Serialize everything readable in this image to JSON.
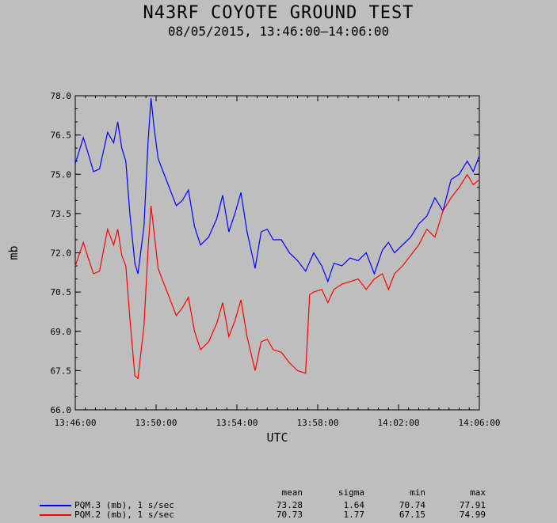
{
  "header": {
    "title": "N43RF COYOTE GROUND TEST",
    "subtitle": "08/05/2015, 13:46:00–14:06:00"
  },
  "chart_data": {
    "type": "line",
    "xlabel": "UTC",
    "ylabel": "mb",
    "xlim": [
      0,
      20
    ],
    "ylim": [
      66.0,
      78.0
    ],
    "grid": false,
    "x_ticks": [
      {
        "value": 0,
        "label": "13:46:00"
      },
      {
        "value": 4,
        "label": "13:50:00"
      },
      {
        "value": 8,
        "label": "13:54:00"
      },
      {
        "value": 12,
        "label": "13:58:00"
      },
      {
        "value": 16,
        "label": "14:02:00"
      },
      {
        "value": 20,
        "label": "14:06:00"
      }
    ],
    "y_ticks": [
      "66.0",
      "67.5",
      "69.0",
      "70.5",
      "72.0",
      "73.5",
      "75.0",
      "76.5",
      "78.0"
    ],
    "series": [
      {
        "name": "PQM.3 (mb), 1 s/sec",
        "color": "#0000ff",
        "x": [
          0,
          0.4,
          0.6,
          0.9,
          1.2,
          1.6,
          1.9,
          2.1,
          2.3,
          2.5,
          2.7,
          2.95,
          3.1,
          3.4,
          3.6,
          3.75,
          3.9,
          4.1,
          4.3,
          4.6,
          5.0,
          5.3,
          5.6,
          5.9,
          6.2,
          6.6,
          7.0,
          7.3,
          7.6,
          7.9,
          8.2,
          8.5,
          8.9,
          9.2,
          9.5,
          9.8,
          10.2,
          10.6,
          11.0,
          11.4,
          11.8,
          12.2,
          12.5,
          12.8,
          13.2,
          13.6,
          14.0,
          14.4,
          14.8,
          15.2,
          15.5,
          15.8,
          16.2,
          16.6,
          17.0,
          17.4,
          17.8,
          18.2,
          18.6,
          19.0,
          19.4,
          19.7,
          20.0
        ],
        "y": [
          75.4,
          76.4,
          75.9,
          75.1,
          75.2,
          76.6,
          76.2,
          77.0,
          76.0,
          75.5,
          73.5,
          71.6,
          71.2,
          73.0,
          76.2,
          77.91,
          76.8,
          75.6,
          75.2,
          74.6,
          73.8,
          74.0,
          74.4,
          73.0,
          72.3,
          72.6,
          73.3,
          74.2,
          72.8,
          73.5,
          74.3,
          72.8,
          71.4,
          72.8,
          72.9,
          72.5,
          72.5,
          72.0,
          71.7,
          71.3,
          72.0,
          71.5,
          70.9,
          71.6,
          71.5,
          71.8,
          71.7,
          72.0,
          71.2,
          72.1,
          72.4,
          72.0,
          72.3,
          72.6,
          73.1,
          73.4,
          74.1,
          73.6,
          74.8,
          75.0,
          75.5,
          75.1,
          75.7
        ]
      },
      {
        "name": "PQM.2 (mb), 1 s/sec",
        "color": "#ff0000",
        "x": [
          0,
          0.4,
          0.6,
          0.9,
          1.2,
          1.6,
          1.9,
          2.1,
          2.3,
          2.5,
          2.7,
          2.95,
          3.1,
          3.4,
          3.6,
          3.75,
          3.9,
          4.1,
          4.3,
          4.6,
          5.0,
          5.3,
          5.6,
          5.9,
          6.2,
          6.6,
          7.0,
          7.3,
          7.6,
          7.9,
          8.2,
          8.5,
          8.9,
          9.2,
          9.5,
          9.8,
          10.2,
          10.6,
          11.0,
          11.4,
          11.6,
          11.8,
          12.2,
          12.5,
          12.8,
          13.2,
          13.6,
          14.0,
          14.4,
          14.8,
          15.2,
          15.5,
          15.8,
          16.2,
          16.6,
          17.0,
          17.4,
          17.8,
          18.2,
          18.6,
          19.0,
          19.4,
          19.7,
          20.0
        ],
        "y": [
          71.5,
          72.4,
          71.9,
          71.2,
          71.3,
          72.9,
          72.3,
          72.9,
          71.9,
          71.5,
          69.5,
          67.3,
          67.2,
          69.2,
          72.1,
          73.8,
          72.8,
          71.4,
          71.0,
          70.4,
          69.6,
          69.9,
          70.3,
          69.0,
          68.3,
          68.6,
          69.3,
          70.1,
          68.8,
          69.4,
          70.2,
          68.8,
          67.5,
          68.6,
          68.7,
          68.3,
          68.2,
          67.8,
          67.5,
          67.4,
          70.4,
          70.5,
          70.6,
          70.1,
          70.6,
          70.8,
          70.9,
          71.0,
          70.6,
          71.0,
          71.2,
          70.6,
          71.2,
          71.5,
          71.9,
          72.3,
          72.9,
          72.6,
          73.6,
          74.1,
          74.5,
          74.99,
          74.6,
          74.8
        ]
      }
    ]
  },
  "stats": {
    "headers": [
      "mean",
      "sigma",
      "min",
      "max"
    ],
    "rows": [
      {
        "label": "PQM.3 (mb), 1 s/sec",
        "color": "#0000ff",
        "mean": "73.28",
        "sigma": "1.64",
        "min": "70.74",
        "max": "77.91"
      },
      {
        "label": "PQM.2 (mb), 1 s/sec",
        "color": "#ff0000",
        "mean": "70.73",
        "sigma": "1.77",
        "min": "67.15",
        "max": "74.99"
      }
    ]
  }
}
